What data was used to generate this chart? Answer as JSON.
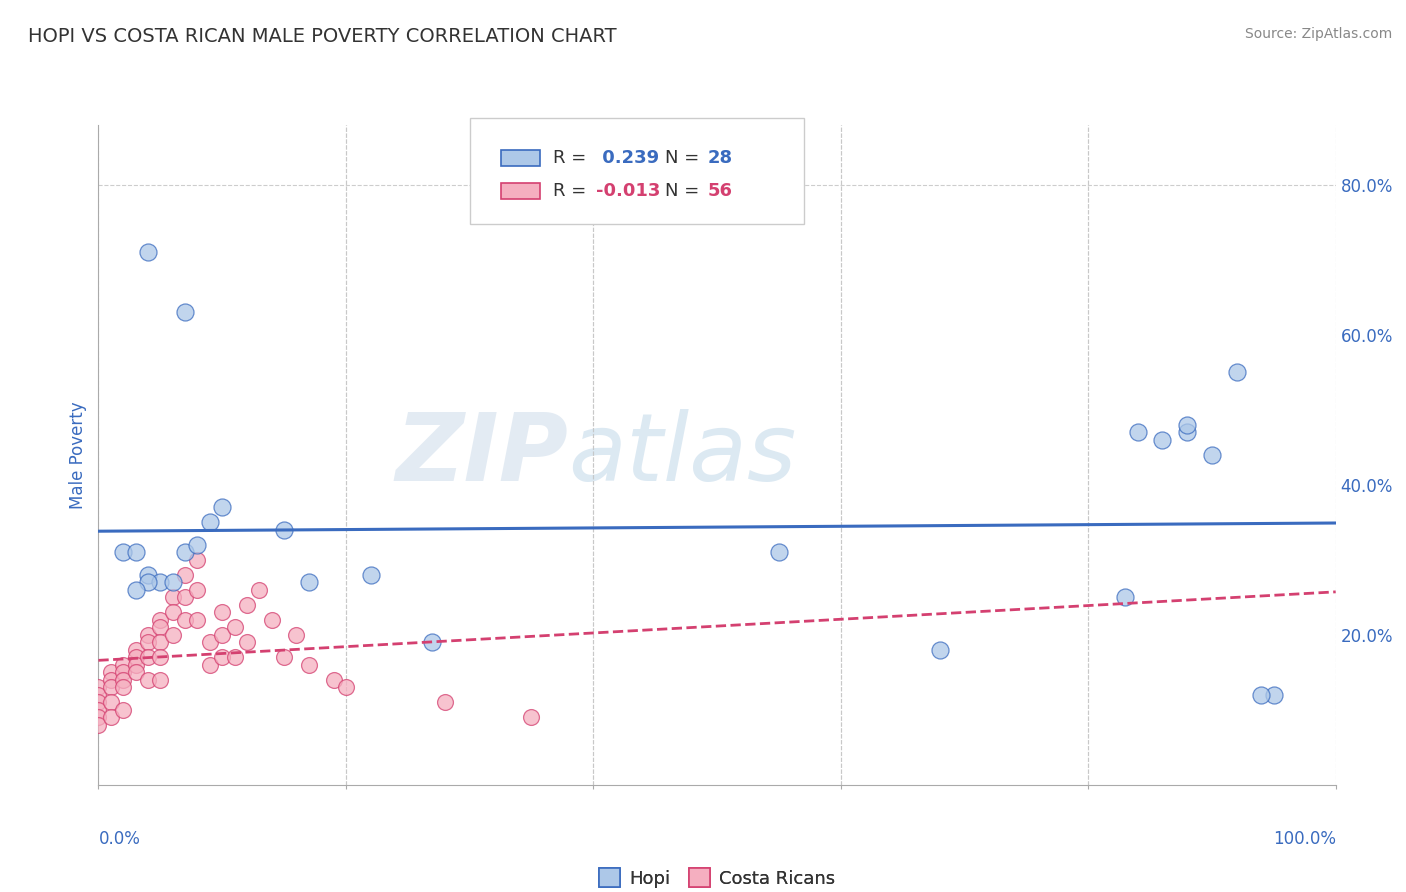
{
  "title": "HOPI VS COSTA RICAN MALE POVERTY CORRELATION CHART",
  "source": "Source: ZipAtlas.com",
  "ylabel": "Male Poverty",
  "watermark": "ZIPatlas",
  "hopi_R": 0.239,
  "hopi_N": 28,
  "cr_R": -0.013,
  "cr_N": 56,
  "hopi_color": "#adc8e8",
  "cr_color": "#f5afc0",
  "hopi_line_color": "#3a6bbf",
  "cr_line_color": "#d44070",
  "xlim": [
    0.0,
    1.0
  ],
  "ylim": [
    0.0,
    0.88
  ],
  "xticks": [
    0.0,
    0.2,
    0.4,
    0.6,
    0.8,
    1.0
  ],
  "yticks": [
    0.2,
    0.4,
    0.6,
    0.8
  ],
  "xticklabels_outer": [
    "0.0%",
    "100.0%"
  ],
  "xticks_outer": [
    0.0,
    1.0
  ],
  "yticklabels": [
    "20.0%",
    "40.0%",
    "60.0%",
    "80.0%"
  ],
  "hopi_x": [
    0.04,
    0.07,
    0.1,
    0.15,
    0.02,
    0.03,
    0.04,
    0.05,
    0.06,
    0.07,
    0.08,
    0.09,
    0.22,
    0.55,
    0.83,
    0.86,
    0.88,
    0.9,
    0.92,
    0.95,
    0.84,
    0.88,
    0.27,
    0.17,
    0.04,
    0.03,
    0.68,
    0.94
  ],
  "hopi_y": [
    0.71,
    0.63,
    0.37,
    0.34,
    0.31,
    0.31,
    0.28,
    0.27,
    0.27,
    0.31,
    0.32,
    0.35,
    0.28,
    0.31,
    0.25,
    0.46,
    0.47,
    0.44,
    0.55,
    0.12,
    0.47,
    0.48,
    0.19,
    0.27,
    0.27,
    0.26,
    0.18,
    0.12
  ],
  "cr_x": [
    0.0,
    0.0,
    0.0,
    0.0,
    0.0,
    0.0,
    0.01,
    0.01,
    0.01,
    0.01,
    0.01,
    0.02,
    0.02,
    0.02,
    0.02,
    0.02,
    0.03,
    0.03,
    0.03,
    0.03,
    0.04,
    0.04,
    0.04,
    0.04,
    0.05,
    0.05,
    0.05,
    0.05,
    0.05,
    0.06,
    0.06,
    0.06,
    0.07,
    0.07,
    0.07,
    0.08,
    0.08,
    0.08,
    0.09,
    0.09,
    0.1,
    0.1,
    0.1,
    0.11,
    0.11,
    0.12,
    0.12,
    0.13,
    0.14,
    0.15,
    0.16,
    0.17,
    0.19,
    0.2,
    0.28,
    0.35
  ],
  "cr_y": [
    0.13,
    0.12,
    0.11,
    0.1,
    0.09,
    0.08,
    0.15,
    0.14,
    0.13,
    0.11,
    0.09,
    0.16,
    0.15,
    0.14,
    0.13,
    0.1,
    0.18,
    0.17,
    0.16,
    0.15,
    0.2,
    0.19,
    0.17,
    0.14,
    0.22,
    0.21,
    0.19,
    0.17,
    0.14,
    0.25,
    0.23,
    0.2,
    0.28,
    0.25,
    0.22,
    0.3,
    0.26,
    0.22,
    0.19,
    0.16,
    0.23,
    0.2,
    0.17,
    0.21,
    0.17,
    0.24,
    0.19,
    0.26,
    0.22,
    0.17,
    0.2,
    0.16,
    0.14,
    0.13,
    0.11,
    0.09
  ],
  "background_color": "#ffffff",
  "grid_color": "#c8c8c8",
  "title_color": "#333333",
  "axis_label_color": "#3a6bbf",
  "tick_color": "#3a6bbf"
}
